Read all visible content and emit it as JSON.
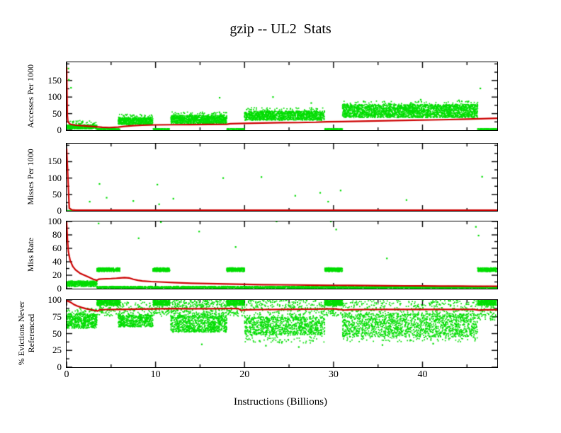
{
  "title": "gzip -- UL2  Stats",
  "x_axis": {
    "label": "Instructions (Billions)",
    "lim": [
      0,
      48.4
    ],
    "ticks_major": [
      0,
      10,
      20,
      30,
      40
    ],
    "ticks_minor": [
      5,
      15,
      25,
      35,
      45
    ]
  },
  "colors": {
    "samples": "#00dd00",
    "average_line": "#cc0000",
    "axis": "#000000",
    "background": "#ffffff"
  },
  "chart_data": [
    {
      "type": "scatter",
      "ylabel": "Accesses Per 1000",
      "ylim": [
        0,
        205
      ],
      "yticks_major": [
        0,
        50,
        100,
        150
      ],
      "yticks_minor": [
        25,
        75,
        125,
        175,
        200
      ],
      "series": [
        {
          "name": "interval samples",
          "style": "points",
          "color": "#00dd00"
        },
        {
          "name": "cumulative average",
          "style": "line",
          "color": "#cc0000"
        }
      ],
      "green_bands": [
        [
          0,
          3.4,
          4,
          16,
          450
        ],
        [
          0,
          3.4,
          16,
          30,
          40
        ],
        [
          3.4,
          6.0,
          2,
          4.5,
          160
        ],
        [
          5.8,
          9.7,
          17,
          38,
          600
        ],
        [
          5.8,
          9.7,
          38,
          48,
          40
        ],
        [
          9.7,
          11.6,
          2,
          4.5,
          120
        ],
        [
          11.7,
          18.0,
          20,
          45,
          1000
        ],
        [
          11.7,
          18.0,
          45,
          55,
          50
        ],
        [
          18.0,
          20.0,
          2,
          4.5,
          120
        ],
        [
          20.0,
          29.0,
          30,
          58,
          1200
        ],
        [
          20.0,
          29.0,
          58,
          68,
          50
        ],
        [
          29.0,
          31.0,
          2,
          4.5,
          120
        ],
        [
          31.0,
          46.2,
          38,
          78,
          2400
        ],
        [
          31.0,
          46.2,
          78,
          88,
          60
        ],
        [
          46.2,
          48.3,
          2,
          4.5,
          120
        ]
      ],
      "green_outliers": [
        [
          0.2,
          186
        ],
        [
          0.25,
          152
        ],
        [
          0.5,
          128
        ],
        [
          17.2,
          98
        ],
        [
          23.2,
          100
        ],
        [
          27.5,
          82
        ],
        [
          33.4,
          86
        ],
        [
          39.8,
          92
        ],
        [
          44.1,
          90
        ],
        [
          36.2,
          80
        ],
        [
          46.5,
          126
        ]
      ],
      "red_line": [
        [
          0,
          190
        ],
        [
          0.08,
          45
        ],
        [
          0.15,
          25
        ],
        [
          0.4,
          18
        ],
        [
          1,
          15
        ],
        [
          2,
          13
        ],
        [
          3,
          11
        ],
        [
          4,
          9
        ],
        [
          4.8,
          8
        ],
        [
          5.8,
          9.5
        ],
        [
          6.5,
          11.5
        ],
        [
          7.5,
          13.5
        ],
        [
          8.5,
          15
        ],
        [
          10,
          16
        ],
        [
          12,
          16.5
        ],
        [
          14,
          17
        ],
        [
          16,
          17.5
        ],
        [
          18,
          18
        ],
        [
          18.4,
          19.5
        ],
        [
          20,
          20.5
        ],
        [
          22,
          21.5
        ],
        [
          24,
          22.5
        ],
        [
          26,
          23
        ],
        [
          28,
          24
        ],
        [
          29.2,
          25.5
        ],
        [
          31,
          26
        ],
        [
          33,
          27
        ],
        [
          35,
          28
        ],
        [
          37,
          29
        ],
        [
          39,
          30
        ],
        [
          41,
          31
        ],
        [
          43,
          32
        ],
        [
          45,
          33.5
        ],
        [
          46.5,
          34.5
        ],
        [
          48.4,
          36
        ]
      ]
    },
    {
      "type": "scatter",
      "ylabel": "Misses Per 1000",
      "ylim": [
        0,
        205
      ],
      "yticks_major": [
        0,
        50,
        100,
        150
      ],
      "yticks_minor": [
        25,
        75,
        125,
        175,
        200
      ],
      "series": [
        {
          "name": "interval samples",
          "style": "points",
          "color": "#00dd00"
        },
        {
          "name": "cumulative average",
          "style": "line",
          "color": "#cc0000"
        }
      ],
      "green_bands": [
        [
          0,
          48.4,
          0,
          2,
          550
        ]
      ],
      "green_outliers": [
        [
          2.6,
          28
        ],
        [
          3.7,
          82
        ],
        [
          4.5,
          40
        ],
        [
          7.5,
          30
        ],
        [
          10.2,
          80
        ],
        [
          10.4,
          20
        ],
        [
          12,
          37
        ],
        [
          17.6,
          100
        ],
        [
          21.9,
          103
        ],
        [
          25.7,
          46
        ],
        [
          28.5,
          55
        ],
        [
          29.4,
          28
        ],
        [
          30.8,
          62
        ],
        [
          38.2,
          33
        ],
        [
          46.7,
          104
        ]
      ],
      "red_line": [
        [
          0,
          190
        ],
        [
          0.3,
          8
        ],
        [
          0.6,
          3
        ],
        [
          1,
          2
        ],
        [
          2,
          1.5
        ],
        [
          48.4,
          1.3
        ]
      ]
    },
    {
      "type": "scatter",
      "ylabel": "Miss Rate",
      "ylim": [
        0,
        100
      ],
      "yticks_major": [
        0,
        20,
        40,
        60,
        80,
        100
      ],
      "yticks_minor": [
        10,
        30,
        50,
        70,
        90
      ],
      "series": [
        {
          "name": "interval samples",
          "style": "points",
          "color": "#00dd00"
        },
        {
          "name": "cumulative average",
          "style": "line",
          "color": "#cc0000"
        }
      ],
      "green_bands": [
        [
          0,
          3.4,
          5.5,
          11.5,
          400
        ],
        [
          0,
          3.4,
          3,
          5.5,
          80
        ],
        [
          3.4,
          48.4,
          0.5,
          3.5,
          2600
        ],
        [
          3.4,
          6.0,
          25.5,
          31,
          300
        ],
        [
          9.7,
          11.6,
          25.5,
          31,
          280
        ],
        [
          18.0,
          20.0,
          25.5,
          31,
          280
        ],
        [
          29.0,
          31.0,
          25.5,
          31,
          280
        ],
        [
          46.2,
          48.3,
          25.5,
          31,
          280
        ]
      ],
      "green_outliers": [
        [
          3.6,
          97
        ],
        [
          10.6,
          99
        ],
        [
          14.9,
          85
        ],
        [
          23.6,
          100
        ],
        [
          29.7,
          100
        ],
        [
          30.3,
          88
        ],
        [
          46.0,
          92
        ],
        [
          46.3,
          79
        ],
        [
          8.1,
          75
        ],
        [
          19.0,
          62
        ],
        [
          36,
          45
        ]
      ],
      "red_line": [
        [
          0,
          100
        ],
        [
          0.1,
          72
        ],
        [
          0.2,
          55
        ],
        [
          0.4,
          42
        ],
        [
          0.7,
          33
        ],
        [
          1,
          28
        ],
        [
          1.5,
          23
        ],
        [
          2,
          20
        ],
        [
          2.5,
          17
        ],
        [
          3,
          14
        ],
        [
          3.4,
          12.5
        ],
        [
          3.6,
          14
        ],
        [
          4,
          14.5
        ],
        [
          5,
          15
        ],
        [
          5.6,
          15.5
        ],
        [
          6,
          16
        ],
        [
          6.5,
          16.5
        ],
        [
          7,
          16
        ],
        [
          7.5,
          14
        ],
        [
          8,
          12.5
        ],
        [
          8.5,
          11.5
        ],
        [
          9.5,
          10.5
        ],
        [
          10.5,
          10
        ],
        [
          12,
          9
        ],
        [
          14,
          8
        ],
        [
          16,
          7.5
        ],
        [
          18,
          7
        ],
        [
          20,
          6.5
        ],
        [
          22,
          6
        ],
        [
          24,
          5.8
        ],
        [
          26,
          5.5
        ],
        [
          28,
          5.2
        ],
        [
          30,
          5
        ],
        [
          32,
          4.8
        ],
        [
          34,
          4.6
        ],
        [
          36,
          4.4
        ],
        [
          38,
          4.2
        ],
        [
          40,
          4
        ],
        [
          42,
          3.9
        ],
        [
          44,
          3.8
        ],
        [
          46,
          3.6
        ],
        [
          48.4,
          3.5
        ]
      ]
    },
    {
      "type": "scatter",
      "ylabel": "% Evictions Never\nReferenced",
      "ylim": [
        0,
        100
      ],
      "yticks_major": [
        0,
        25,
        50,
        75,
        100
      ],
      "yticks_minor": [
        12.5,
        37.5,
        62.5,
        87.5
      ],
      "series": [
        {
          "name": "interval samples",
          "style": "points",
          "color": "#00dd00"
        },
        {
          "name": "cumulative average",
          "style": "line",
          "color": "#cc0000"
        }
      ],
      "green_bands": [
        [
          0,
          3.4,
          58,
          80,
          500
        ],
        [
          0,
          3.4,
          80,
          88,
          40
        ],
        [
          3.4,
          6.0,
          92,
          100,
          340
        ],
        [
          3.4,
          6.0,
          76,
          92,
          70
        ],
        [
          5.8,
          9.7,
          60,
          78,
          480
        ],
        [
          5.8,
          9.7,
          78,
          97,
          90
        ],
        [
          9.7,
          11.6,
          92,
          100,
          300
        ],
        [
          9.7,
          11.6,
          76,
          92,
          60
        ],
        [
          11.7,
          18.0,
          52,
          78,
          850
        ],
        [
          11.7,
          18.0,
          78,
          100,
          300
        ],
        [
          18.0,
          20.0,
          92,
          100,
          300
        ],
        [
          18.0,
          20.0,
          76,
          92,
          60
        ],
        [
          20.0,
          29.0,
          48,
          75,
          950
        ],
        [
          20.0,
          29.0,
          75,
          100,
          260
        ],
        [
          20.0,
          29.0,
          36,
          48,
          70
        ],
        [
          29.0,
          31.0,
          92,
          100,
          300
        ],
        [
          29.0,
          31.0,
          76,
          92,
          60
        ],
        [
          31.0,
          46.2,
          45,
          80,
          1600
        ],
        [
          31.0,
          46.2,
          80,
          100,
          300
        ],
        [
          31.0,
          46.2,
          38,
          45,
          70
        ],
        [
          46.2,
          48.3,
          92,
          100,
          300
        ],
        [
          46.2,
          48.3,
          70,
          92,
          70
        ]
      ],
      "green_outliers": [
        [
          8.3,
          100
        ],
        [
          15.2,
          34
        ],
        [
          22.4,
          32
        ],
        [
          26.1,
          30
        ],
        [
          35.5,
          33
        ],
        [
          41.2,
          35
        ]
      ],
      "red_line": [
        [
          0,
          100
        ],
        [
          0.4,
          97
        ],
        [
          0.8,
          93.5
        ],
        [
          1.2,
          91
        ],
        [
          1.7,
          88.8
        ],
        [
          2.2,
          87
        ],
        [
          2.7,
          85.6
        ],
        [
          3.2,
          84.3
        ],
        [
          3.5,
          83.6
        ],
        [
          3.7,
          85.3
        ],
        [
          4.5,
          85.8
        ],
        [
          6,
          86
        ],
        [
          8,
          86.5
        ],
        [
          9.7,
          86.8
        ],
        [
          11.7,
          87.2
        ],
        [
          14,
          86.9
        ],
        [
          16,
          87
        ],
        [
          18,
          87.3
        ],
        [
          19.3,
          87.3
        ],
        [
          19.6,
          84.6
        ],
        [
          20.2,
          85.4
        ],
        [
          22,
          85.8
        ],
        [
          24,
          86
        ],
        [
          26,
          86.2
        ],
        [
          28,
          86.3
        ],
        [
          29,
          86.8
        ],
        [
          30.2,
          86.8
        ],
        [
          31.2,
          85
        ],
        [
          32,
          85.6
        ],
        [
          34,
          85.8
        ],
        [
          36,
          85.9
        ],
        [
          38,
          86
        ],
        [
          40,
          86
        ],
        [
          42,
          86
        ],
        [
          44,
          86
        ],
        [
          45.8,
          85.9
        ],
        [
          46.3,
          84.8
        ],
        [
          47,
          85.3
        ],
        [
          48.4,
          85.5
        ]
      ]
    }
  ]
}
